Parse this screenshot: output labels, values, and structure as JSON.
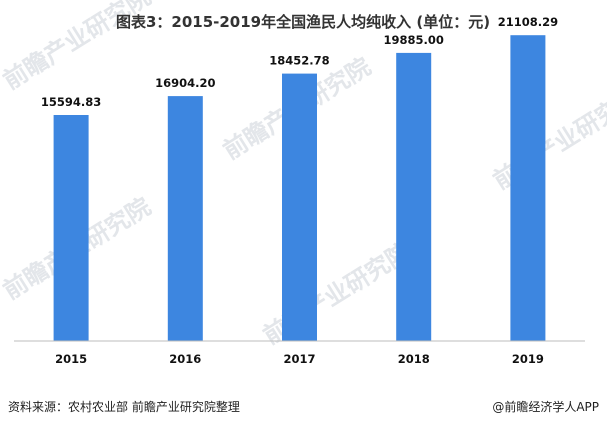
{
  "chart_data": {
    "type": "bar",
    "title": "图表3：2015-2019年全国渔民人均纯收入 (单位：元)",
    "categories": [
      "2015",
      "2016",
      "2017",
      "2018",
      "2019"
    ],
    "values": [
      15594.83,
      16904.2,
      18452.78,
      19885.0,
      21108.29
    ],
    "value_labels": [
      "15594.83",
      "16904.20",
      "18452.78",
      "19885.00",
      "21108.29"
    ],
    "xlabel": "",
    "ylabel": "",
    "ylim": [
      0,
      22500
    ],
    "grid": false,
    "legend": "none",
    "bar_color": "#3d86e0"
  },
  "footer": {
    "source": "资料来源：农村农业部 前瞻产业研究院整理",
    "brand": "@前瞻经济学人APP"
  },
  "watermark": {
    "text": "前瞻产业研究院"
  }
}
